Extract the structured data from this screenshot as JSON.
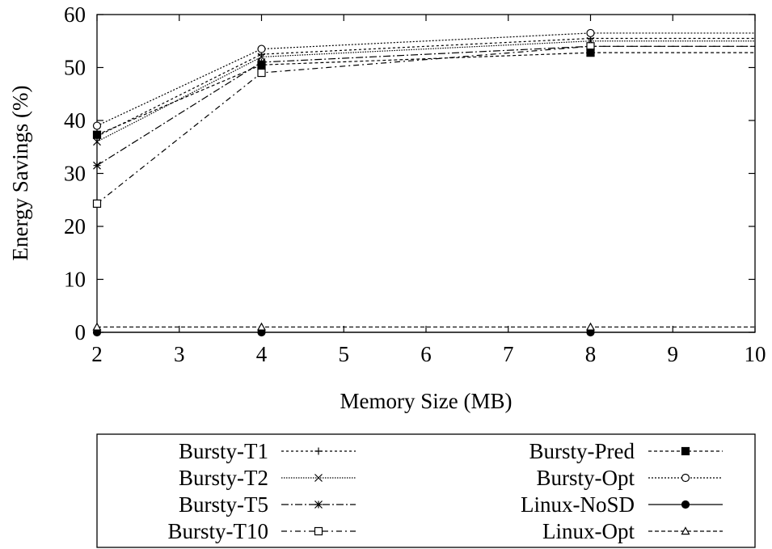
{
  "chart_data": {
    "type": "line",
    "xlabel": "Memory Size (MB)",
    "ylabel": "Energy Savings (%)",
    "xlim": [
      2,
      10
    ],
    "ylim": [
      0,
      60
    ],
    "xticks": [
      "2",
      "3",
      "4",
      "5",
      "6",
      "7",
      "8",
      "9",
      "10"
    ],
    "yticks": [
      "0",
      "10",
      "20",
      "30",
      "40",
      "50",
      "60"
    ],
    "grid": false,
    "legend_position": "below",
    "x": [
      2,
      4,
      8
    ],
    "series": [
      {
        "name": "Bursty-T1",
        "values": [
          37.0,
          52.5,
          55.5
        ],
        "marker": "plus",
        "dash": "3,3"
      },
      {
        "name": "Bursty-T2",
        "values": [
          36.0,
          52.0,
          55.0
        ],
        "marker": "cross",
        "dash": "1.5,1.5"
      },
      {
        "name": "Bursty-T5",
        "values": [
          31.5,
          51.0,
          54.0
        ],
        "marker": "star",
        "dash": "9,3,2,3"
      },
      {
        "name": "Bursty-T10",
        "values": [
          24.3,
          49.0,
          54.0
        ],
        "marker": "square-open",
        "dash": "7,4,2,4"
      },
      {
        "name": "Bursty-Pred",
        "values": [
          37.3,
          50.5,
          52.8
        ],
        "marker": "square-filled",
        "dash": "4,3"
      },
      {
        "name": "Bursty-Opt",
        "values": [
          39.0,
          53.5,
          56.5
        ],
        "marker": "circle-open",
        "dash": "2,2"
      },
      {
        "name": "Linux-NoSD",
        "values": [
          0.0,
          0.0,
          0.0
        ],
        "marker": "circle-filled",
        "dash": ""
      },
      {
        "name": "Linux-Opt",
        "values": [
          1.0,
          1.0,
          1.0
        ],
        "marker": "triangle-open",
        "dash": "5,3"
      }
    ]
  }
}
